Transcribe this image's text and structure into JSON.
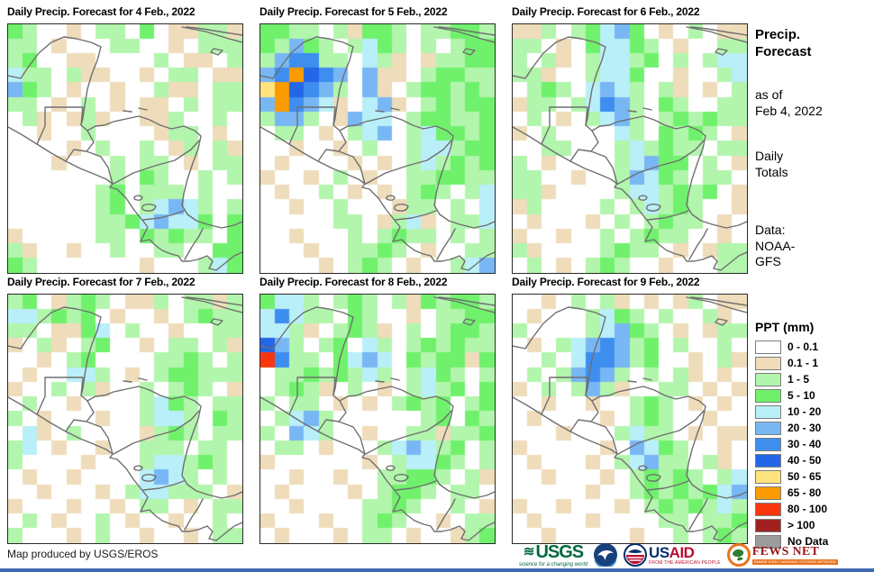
{
  "panels": [
    {
      "title": "Daily Precip. Forecast for 4 Feb., 2022",
      "grid": [
        "Gg..t.gg.G.ttggt",
        "gg.t...gg..t.ggg",
        "gG..tt....g.tt.g",
        "cgg.gtt..t.gg.tt",
        "bGg.t..t..gtt.gg",
        "gg.t.g.t.tt.g.gg",
        ".gt.tgt..ttg..g.",
        "..t..g....tgg.t.",
        "....t.g..g.tg.gt",
        "...t...g.gg.t.gg",
        ".......g.Gg..g.g",
        "......gG.ggg.g..",
        "......gG.gcbcg.g",
        "......ggGcbccG.G",
        "t.....gg.GgGgg.G",
        "gt..t..g..gg..GG",
        "Gg.......t...gcG"
      ]
    },
    {
      "title": "Daily Precip. Forecast for 5 Feb., 2022",
      "grid": [
        "GGgg.gtGGg.ggGGg",
        "GgbGg.gcGg.g.gGG",
        "gbBBgg.cgt.tggGG",
        "bBoDBb.btt.gGGgg",
        "yoDBbg.bt.gGGgGg",
        "boBbct.cbt.gGgGG",
        "gbbg.tbcc.gGGggG",
        ".gg.t.gcb.gcGGgG",
        "..t..t.g..gccgGG",
        ".t....t.t.gcgGgG",
        "t..t.g.t..ggGGgg",
        ".t..g.t.t.gGg.gc",
        "..t..g...tgg.g.c",
        ".....gg.tgct.ggc",
        "..t...g.gGgg.g.g",
        "...t..ggGg.t..gg",
        "....t.gGg.t..gcb"
      ]
    },
    {
      "title": "Daily Precip. Forecast for 6 Feb., 2022",
      "grid": [
        "ttg.gGcbG.t.g.tt",
        "gg.t.GccGg.t..gg",
        "g.gt.gccgG.g.gcc",
        "ggt..gccG..t..gc",
        ".gGg.cbcg.gt.t.g",
        "tgg.gcBbg.Gg..gg",
        ".g.t.gcbg.gGgGgg",
        "t.g....cg.GgGg.t",
        "..gg...gcgGgg.gg",
        "g.t....gcbGG.g.t",
        "gg..t..gbcGg.gg.",
        "ggt....gccgGgG.t",
        "tg....g.gcgGg..t",
        ".t...t.g.gGgg.t.",
        "t..t..g.gGgg..t.",
        "gt....gGgg.t.tgg",
        ".g.t.gGg..t...gg"
      ]
    },
    {
      "title": "Daily Precip. Forecast for 7 Feb., 2022",
      "grid": [
        "gG.tgGg.ttg.ggtg",
        "ccgGgG.t..t.gGgg",
        "gg.ttGc.g..t..gg",
        "t.gt.gG..t.gg.gt",
        "..t.gG....ggGg.g",
        ".t..ccg.t.gGGggg",
        "t..g.gt..g.gGg.t",
        ".g..t....gcGg.gg",
        "g.t...t..gccg.Gg",
        ".ct.g....tgGg.gg",
        "gc.t..t..ggg.gg.",
        "g....t...gccgGg.",
        ".t..t....cbcg.g.",
        "..t...t.gccggg.t",
        "t...t..t.gg.t.gg",
        ".g.t..g.t..t..g.",
        "g...t.g..t..t.gg"
      ]
    },
    {
      "title": "Daily Precip. Forecast for 8 Feb., 2022",
      "grid": [
        "Gccg.gGg.gtGgGGg",
        "cBcgg.Gg..t.ggGG",
        "ccgt.gGgt.g.gGGg",
        "Dbg.gG.cg.gGgGgg",
        "rBgg.Gcbc.GgGGtG",
        ".ggGgGgcg.gcGg.g",
        ".gGgt.g.t.gcgG.G",
        "g.gg.t.t.gGgG.gG",
        ".gcbg......gG.Gg",
        "g.bcg..t..ggtggG",
        ".gg.t...gcbcgG.g",
        "t......t.gccGg.g",
        "..t..t..ggGGg.gt",
        ".t....t.gGGg.gg.",
        "..t....ggGg..g.t",
        "t...t..gGg..t.gg",
        ".t...t.gg.t..tgG"
      ]
    },
    {
      "title": "Daily Precip. Forecast for 9 Feb., 2022",
      "grid": [
        "..t.g.gt.t.tg.tt",
        ".t...gcGg.g..gt.",
        "g....gcbGg.t.tgg",
        ".t.gcbBbgG.g..g.",
        "..g.cBBbgG..t.gt",
        ".g.gbBbg.g.gt.t.",
        "t.g.gbgt..gg.t.t",
        "..t..t..gGg.t.t.",
        ".t....t.gGg..t..",
        "...t...gcgg.t.tt",
        "t.....t.bcGg..t.",
        ".t...t.gcbgg.gt.",
        "..t...t.gGgGg.gc",
        ".....t..gGgGgGcb",
        "t..t...t.gGgGgcg",
        ".t...t....gg.ggG",
        "..t.....t..g.gGg"
      ]
    }
  ],
  "palette": {
    ".": "#ffffff",
    "t": "#eedcba",
    "g": "#b2f5ac",
    "G": "#70f16c",
    "c": "#b9eff8",
    "b": "#78b7f4",
    "B": "#3e8ef0",
    "D": "#2366e8",
    "y": "#ffe47d",
    "o": "#fa9b00",
    "r": "#fa360f",
    "R": "#a12121",
    "n": "#9c9c9c"
  },
  "sidebar": {
    "title": "Precip.\nForecast",
    "as_of": "as of\nFeb 4, 2022",
    "totals": "Daily\nTotals",
    "source": "Data:\nNOAA-\nGFS"
  },
  "legend": {
    "title": "PPT (mm)",
    "entries": [
      {
        "label": "0 - 0.1",
        "color": "#ffffff"
      },
      {
        "label": "0.1 - 1",
        "color": "#eedcba"
      },
      {
        "label": "1 - 5",
        "color": "#b2f5ac"
      },
      {
        "label": "5 - 10",
        "color": "#70f16c"
      },
      {
        "label": "10 - 20",
        "color": "#b9eff8"
      },
      {
        "label": "20 - 30",
        "color": "#78b7f4"
      },
      {
        "label": "30 - 40",
        "color": "#3e8ef0"
      },
      {
        "label": "40 - 50",
        "color": "#2366e8"
      },
      {
        "label": "50 - 65",
        "color": "#ffe47d"
      },
      {
        "label": "65 - 80",
        "color": "#fa9b00"
      },
      {
        "label": "80 - 100",
        "color": "#fa360f"
      },
      {
        "label": "> 100",
        "color": "#a12121"
      },
      {
        "label": "No Data",
        "color": "#9c9c9c"
      }
    ]
  },
  "footer": {
    "credit": "Map produced by USGS/EROS",
    "logos": {
      "usgs": {
        "text": "USGS",
        "tagline": "science for a changing world"
      },
      "usaid": {
        "text_us": "US",
        "text_aid": "AID",
        "tagline": "FROM THE AMERICAN PEOPLE"
      },
      "fewsnet": {
        "text": "FEWS NET",
        "tagline": "FAMINE EARLY WARNING SYSTEMS NETWORK"
      }
    }
  },
  "brand_colors": {
    "usgs_green": "#00693f",
    "noaa_navy": "#16417c",
    "noaa_light_blue": "#3f86c6",
    "usaid_navy": "#002f6c",
    "usaid_red": "#ba0c2f",
    "fews_orange": "#e8741e",
    "fews_maroon": "#9b1b1f",
    "map_border_line": "#6f6f6f"
  }
}
